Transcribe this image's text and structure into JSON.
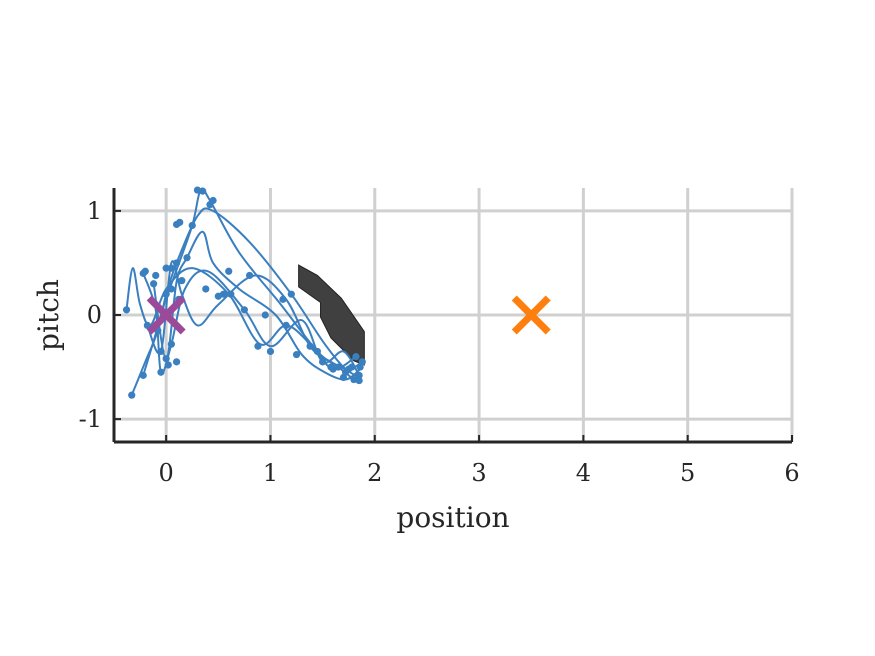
{
  "chart_data": {
    "type": "line",
    "title": "",
    "xlabel": "position",
    "ylabel": "pitch",
    "xlim": [
      -0.5,
      6
    ],
    "ylim": [
      -1.22,
      1.22
    ],
    "x_ticks": [
      0,
      1,
      2,
      3,
      4,
      5,
      6
    ],
    "x_tick_labels": [
      "0",
      "1",
      "2",
      "3",
      "4",
      "5",
      "6"
    ],
    "y_ticks": [
      -1,
      0,
      1
    ],
    "y_tick_labels": [
      "-1",
      "0",
      "1"
    ],
    "grid": true,
    "colors": {
      "trajectory": "#3a7fbf",
      "start_marker": "#9b4a9a",
      "goal_marker": "#ff7f0e",
      "obstacle": "#404040",
      "grid": "#d0d0d0",
      "axis": "#262626"
    },
    "start": {
      "x": 0,
      "y": 0,
      "marker": "x"
    },
    "goal": {
      "x": 3.5,
      "y": 0,
      "marker": "x"
    },
    "obstacle": [
      [
        1.27,
        0.48
      ],
      [
        1.45,
        0.38
      ],
      [
        1.68,
        0.16
      ],
      [
        1.9,
        -0.16
      ],
      [
        1.9,
        -0.48
      ],
      [
        1.8,
        -0.44
      ],
      [
        1.58,
        -0.22
      ],
      [
        1.48,
        -0.02
      ],
      [
        1.48,
        0.12
      ],
      [
        1.27,
        0.27
      ]
    ],
    "series": [
      {
        "values": [
          [
            -0.33,
            -0.77
          ],
          [
            -0.2,
            -0.45
          ],
          [
            -0.08,
            -0.15
          ],
          [
            0.0,
            0.2
          ],
          [
            0.1,
            0.5
          ],
          [
            0.3,
            0.95
          ],
          [
            0.45,
            1.0
          ],
          [
            0.8,
            0.7
          ],
          [
            1.2,
            0.2
          ],
          [
            1.5,
            -0.25
          ],
          [
            1.7,
            -0.5
          ],
          [
            1.85,
            -0.6
          ]
        ]
      },
      {
        "values": [
          [
            -0.22,
            -0.58
          ],
          [
            -0.12,
            -0.25
          ],
          [
            -0.02,
            0.1
          ],
          [
            0.08,
            0.38
          ],
          [
            0.25,
            0.86
          ],
          [
            0.33,
            1.2
          ],
          [
            0.42,
            1.1
          ],
          [
            0.7,
            0.6
          ],
          [
            1.1,
            0.1
          ],
          [
            1.45,
            -0.35
          ],
          [
            1.65,
            -0.5
          ],
          [
            1.8,
            -0.62
          ]
        ]
      },
      {
        "values": [
          [
            -0.38,
            0.05
          ],
          [
            -0.32,
            0.45
          ],
          [
            -0.25,
            0.1
          ],
          [
            -0.15,
            -0.1
          ],
          [
            0.0,
            0.25
          ],
          [
            0.25,
            0.45
          ],
          [
            0.6,
            0.2
          ],
          [
            0.9,
            -0.28
          ],
          [
            1.15,
            -0.1
          ],
          [
            1.4,
            -0.3
          ],
          [
            1.6,
            -0.52
          ],
          [
            1.82,
            -0.4
          ]
        ]
      },
      {
        "values": [
          [
            -0.22,
            0.4
          ],
          [
            -0.1,
            0.05
          ],
          [
            -0.05,
            -0.55
          ],
          [
            0.05,
            -0.28
          ],
          [
            0.18,
            0.25
          ],
          [
            0.4,
            0.42
          ],
          [
            0.75,
            0.05
          ],
          [
            1.0,
            -0.3
          ],
          [
            1.3,
            -0.05
          ],
          [
            1.5,
            -0.45
          ],
          [
            1.7,
            -0.35
          ],
          [
            1.85,
            -0.58
          ]
        ]
      },
      {
        "values": [
          [
            -0.18,
            -0.1
          ],
          [
            -0.05,
            -0.35
          ],
          [
            0.05,
            0.5
          ],
          [
            0.15,
            0.2
          ],
          [
            0.3,
            -0.1
          ],
          [
            0.5,
            0.1
          ],
          [
            0.85,
            0.38
          ],
          [
            1.15,
            0.15
          ],
          [
            1.38,
            -0.3
          ],
          [
            1.58,
            -0.45
          ],
          [
            1.75,
            -0.52
          ],
          [
            1.88,
            -0.45
          ]
        ]
      },
      {
        "values": [
          [
            -0.12,
            0.3
          ],
          [
            0.0,
            -0.42
          ],
          [
            0.1,
            0.32
          ],
          [
            0.2,
            0.55
          ],
          [
            0.35,
            0.8
          ],
          [
            0.45,
            0.5
          ],
          [
            0.7,
            0.25
          ],
          [
            1.05,
            0.0
          ],
          [
            1.3,
            -0.38
          ],
          [
            1.52,
            -0.55
          ],
          [
            1.72,
            -0.62
          ],
          [
            1.86,
            -0.52
          ]
        ]
      }
    ],
    "markers": [
      [
        -0.33,
        -0.77
      ],
      [
        -0.22,
        -0.58
      ],
      [
        -0.38,
        0.05
      ],
      [
        -0.22,
        0.4
      ],
      [
        -0.18,
        -0.1
      ],
      [
        -0.12,
        0.3
      ],
      [
        0.3,
        1.2
      ],
      [
        0.35,
        1.19
      ],
      [
        0.45,
        1.1
      ],
      [
        0.42,
        1.06
      ],
      [
        0.25,
        0.86
      ],
      [
        0.1,
        0.87
      ],
      [
        0.13,
        0.89
      ],
      [
        0.0,
        0.45
      ],
      [
        0.05,
        0.45
      ],
      [
        0.1,
        0.5
      ],
      [
        0.15,
        0.33
      ],
      [
        0.2,
        0.55
      ],
      [
        -0.2,
        0.42
      ],
      [
        -0.1,
        0.38
      ],
      [
        0.0,
        0.2
      ],
      [
        0.05,
        0.25
      ],
      [
        0.12,
        0.15
      ],
      [
        -0.05,
        -0.35
      ],
      [
        0.0,
        -0.42
      ],
      [
        0.05,
        -0.28
      ],
      [
        -0.08,
        -0.15
      ],
      [
        -0.05,
        -0.55
      ],
      [
        0.02,
        -0.48
      ],
      [
        0.1,
        -0.45
      ],
      [
        0.38,
        0.25
      ],
      [
        0.5,
        0.18
      ],
      [
        0.55,
        0.2
      ],
      [
        0.62,
        0.2
      ],
      [
        0.6,
        0.42
      ],
      [
        0.8,
        0.38
      ],
      [
        0.75,
        0.05
      ],
      [
        0.88,
        -0.3
      ],
      [
        1.0,
        -0.35
      ],
      [
        1.15,
        -0.1
      ],
      [
        1.25,
        -0.38
      ],
      [
        1.38,
        -0.3
      ],
      [
        1.45,
        -0.35
      ],
      [
        1.5,
        -0.45
      ],
      [
        1.58,
        -0.5
      ],
      [
        1.6,
        -0.52
      ],
      [
        1.65,
        -0.5
      ],
      [
        1.7,
        -0.6
      ],
      [
        1.72,
        -0.55
      ],
      [
        1.75,
        -0.52
      ],
      [
        1.78,
        -0.5
      ],
      [
        1.8,
        -0.62
      ],
      [
        1.82,
        -0.4
      ],
      [
        1.85,
        -0.58
      ],
      [
        1.86,
        -0.5
      ],
      [
        1.88,
        -0.45
      ],
      [
        1.85,
        -0.63
      ],
      [
        1.2,
        0.2
      ],
      [
        1.12,
        0.15
      ],
      [
        0.95,
        0.0
      ]
    ]
  }
}
